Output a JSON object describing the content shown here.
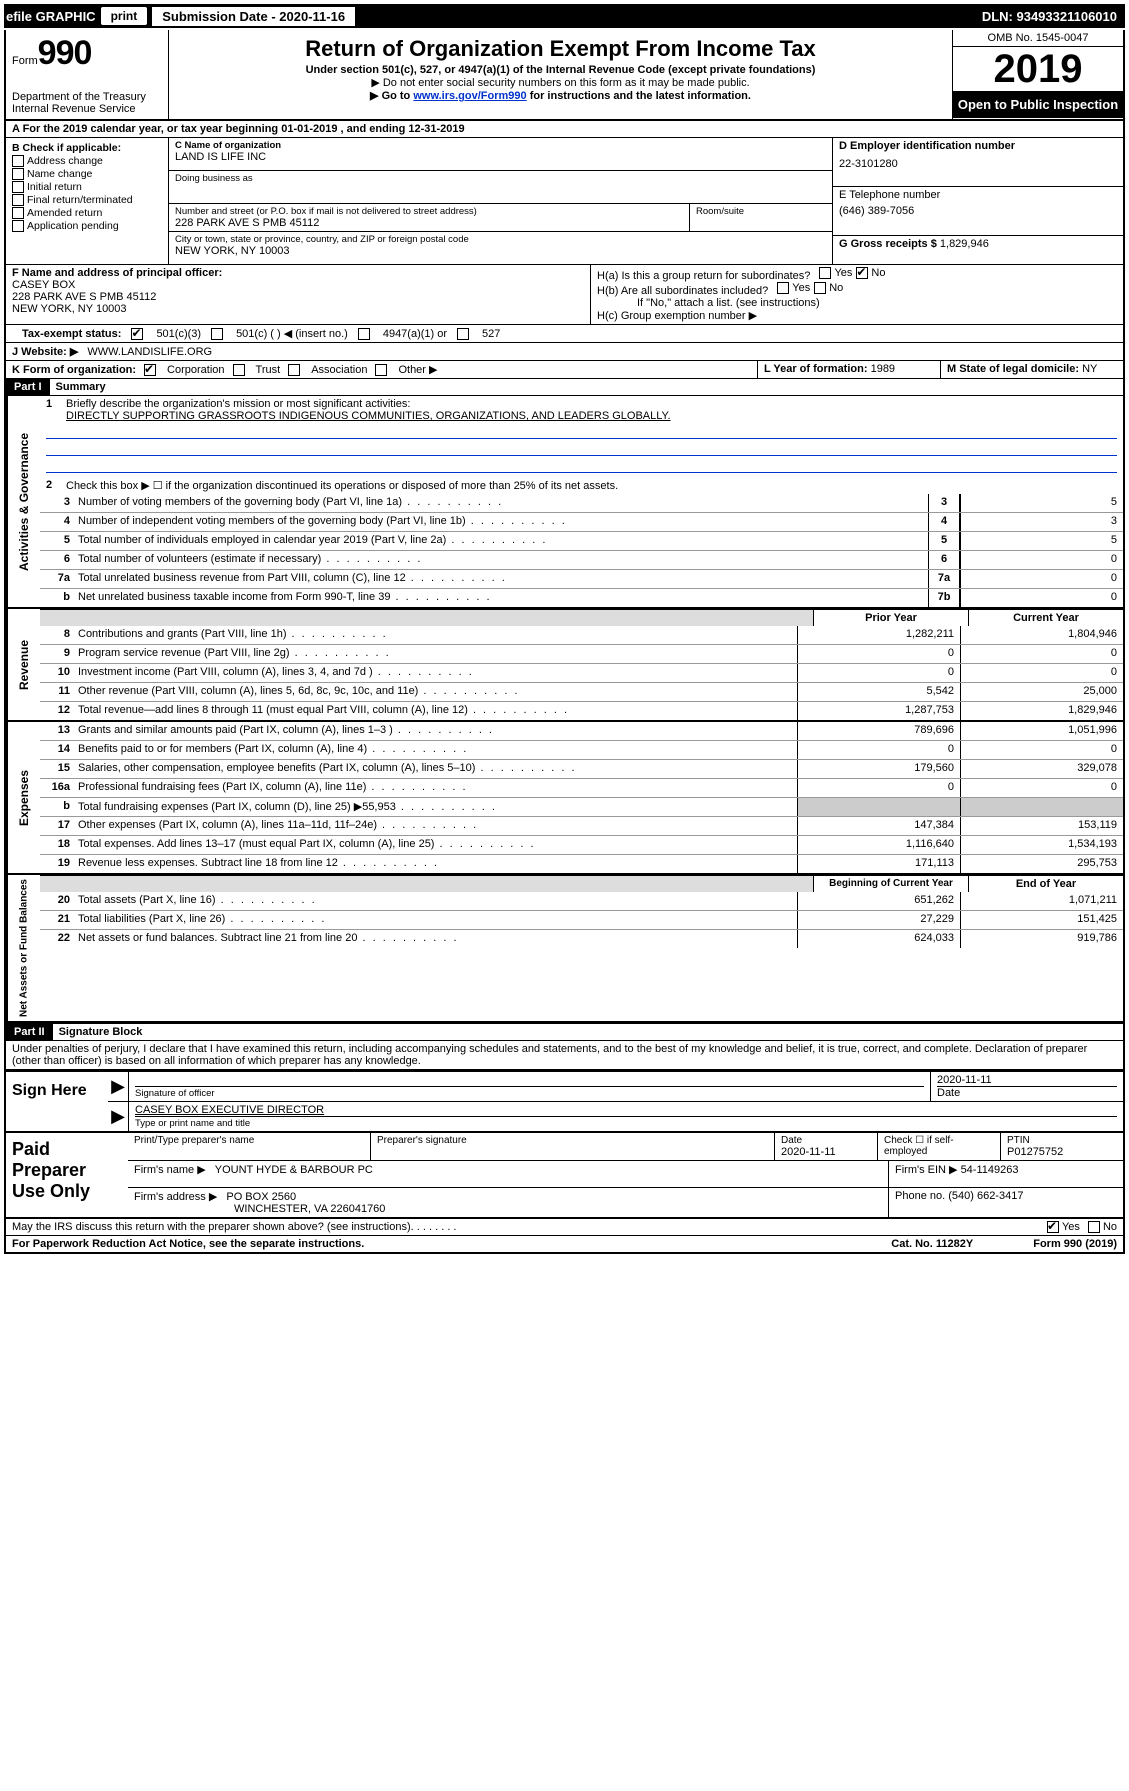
{
  "topbar": {
    "efile": "efile GRAPHIC",
    "print": "print",
    "submission": "Submission Date - 2020-11-16",
    "dln": "DLN: 93493321106010"
  },
  "header": {
    "form_prefix": "Form",
    "form_number": "990",
    "dept": "Department of the Treasury\nInternal Revenue Service",
    "title": "Return of Organization Exempt From Income Tax",
    "subtitle": "Under section 501(c), 527, or 4947(a)(1) of the Internal Revenue Code (except private foundations)",
    "note1": "▶ Do not enter social security numbers on this form as it may be made public.",
    "note2_pre": "▶ Go to ",
    "note2_link": "www.irs.gov/Form990",
    "note2_post": " for instructions and the latest information.",
    "omb": "OMB No. 1545-0047",
    "year": "2019",
    "open": "Open to Public Inspection"
  },
  "rowA": {
    "pre": "A For the 2019 calendar year, or tax year beginning ",
    "begin": "01-01-2019",
    "mid": " , and ending ",
    "end": "12-31-2019"
  },
  "B": {
    "label": "B Check if applicable:",
    "items": [
      "Address change",
      "Name change",
      "Initial return",
      "Final return/terminated",
      "Amended return",
      "Application pending"
    ]
  },
  "C": {
    "name_lbl": "C Name of organization",
    "name": "LAND IS LIFE INC",
    "dba_lbl": "Doing business as",
    "dba": "",
    "addr_lbl": "Number and street (or P.O. box if mail is not delivered to street address)",
    "addr": "228 PARK AVE S PMB 45112",
    "room_lbl": "Room/suite",
    "city_lbl": "City or town, state or province, country, and ZIP or foreign postal code",
    "city": "NEW YORK, NY  10003"
  },
  "D": {
    "lbl": "D Employer identification number",
    "val": "22-3101280"
  },
  "E": {
    "lbl": "E Telephone number",
    "val": "(646) 389-7056"
  },
  "G": {
    "lbl": "G Gross receipts $",
    "val": "1,829,946"
  },
  "F": {
    "lbl": "F  Name and address of principal officer:",
    "name": "CASEY BOX",
    "addr1": "228 PARK AVE S PMB 45112",
    "addr2": "NEW YORK, NY  10003"
  },
  "H": {
    "a": "H(a)  Is this a group return for subordinates?",
    "b": "H(b)  Are all subordinates included?",
    "b_note": "If \"No,\" attach a list. (see instructions)",
    "c": "H(c)  Group exemption number ▶"
  },
  "I": {
    "lbl": "Tax-exempt status:",
    "opts": [
      "501(c)(3)",
      "501(c) (   ) ◀ (insert no.)",
      "4947(a)(1) or",
      "527"
    ]
  },
  "J": {
    "lbl": "J Website: ▶",
    "val": "WWW.LANDISLIFE.ORG"
  },
  "K": {
    "lbl": "K Form of organization:",
    "opts": [
      "Corporation",
      "Trust",
      "Association",
      "Other ▶"
    ]
  },
  "L": {
    "lbl": "L Year of formation:",
    "val": "1989"
  },
  "M": {
    "lbl": "M State of legal domicile:",
    "val": "NY"
  },
  "part1": {
    "hdr": "Part I",
    "title": "Summary"
  },
  "summary": {
    "q1": "Briefly describe the organization's mission or most significant activities:",
    "q1_ans": "DIRECTLY SUPPORTING GRASSROOTS INDIGENOUS COMMUNITIES, ORGANIZATIONS, AND LEADERS GLOBALLY.",
    "q2": "Check this box ▶ ☐  if the organization discontinued its operations or disposed of more than 25% of its net assets."
  },
  "gov_lines": [
    {
      "n": "3",
      "d": "Number of voting members of the governing body (Part VI, line 1a)",
      "box": "3",
      "v": "5"
    },
    {
      "n": "4",
      "d": "Number of independent voting members of the governing body (Part VI, line 1b)",
      "box": "4",
      "v": "3"
    },
    {
      "n": "5",
      "d": "Total number of individuals employed in calendar year 2019 (Part V, line 2a)",
      "box": "5",
      "v": "5"
    },
    {
      "n": "6",
      "d": "Total number of volunteers (estimate if necessary)",
      "box": "6",
      "v": "0"
    },
    {
      "n": "7a",
      "d": "Total unrelated business revenue from Part VIII, column (C), line 12",
      "box": "7a",
      "v": "0"
    },
    {
      "n": "b",
      "d": "Net unrelated business taxable income from Form 990-T, line 39",
      "box": "7b",
      "v": "0"
    }
  ],
  "col_hdr": {
    "prior": "Prior Year",
    "current": "Current Year",
    "begin": "Beginning of Current Year",
    "end": "End of Year"
  },
  "rev_lines": [
    {
      "n": "8",
      "d": "Contributions and grants (Part VIII, line 1h)",
      "p": "1,282,211",
      "c": "1,804,946"
    },
    {
      "n": "9",
      "d": "Program service revenue (Part VIII, line 2g)",
      "p": "0",
      "c": "0"
    },
    {
      "n": "10",
      "d": "Investment income (Part VIII, column (A), lines 3, 4, and 7d )",
      "p": "0",
      "c": "0"
    },
    {
      "n": "11",
      "d": "Other revenue (Part VIII, column (A), lines 5, 6d, 8c, 9c, 10c, and 11e)",
      "p": "5,542",
      "c": "25,000"
    },
    {
      "n": "12",
      "d": "Total revenue—add lines 8 through 11 (must equal Part VIII, column (A), line 12)",
      "p": "1,287,753",
      "c": "1,829,946"
    }
  ],
  "exp_lines": [
    {
      "n": "13",
      "d": "Grants and similar amounts paid (Part IX, column (A), lines 1–3 )",
      "p": "789,696",
      "c": "1,051,996"
    },
    {
      "n": "14",
      "d": "Benefits paid to or for members (Part IX, column (A), line 4)",
      "p": "0",
      "c": "0"
    },
    {
      "n": "15",
      "d": "Salaries, other compensation, employee benefits (Part IX, column (A), lines 5–10)",
      "p": "179,560",
      "c": "329,078"
    },
    {
      "n": "16a",
      "d": "Professional fundraising fees (Part IX, column (A), line 11e)",
      "p": "0",
      "c": "0"
    },
    {
      "n": "b",
      "d": "Total fundraising expenses (Part IX, column (D), line 25) ▶55,953",
      "p": "",
      "c": "",
      "grey": true
    },
    {
      "n": "17",
      "d": "Other expenses (Part IX, column (A), lines 11a–11d, 11f–24e)",
      "p": "147,384",
      "c": "153,119"
    },
    {
      "n": "18",
      "d": "Total expenses. Add lines 13–17 (must equal Part IX, column (A), line 25)",
      "p": "1,116,640",
      "c": "1,534,193"
    },
    {
      "n": "19",
      "d": "Revenue less expenses. Subtract line 18 from line 12",
      "p": "171,113",
      "c": "295,753"
    }
  ],
  "net_lines": [
    {
      "n": "20",
      "d": "Total assets (Part X, line 16)",
      "p": "651,262",
      "c": "1,071,211"
    },
    {
      "n": "21",
      "d": "Total liabilities (Part X, line 26)",
      "p": "27,229",
      "c": "151,425"
    },
    {
      "n": "22",
      "d": "Net assets or fund balances. Subtract line 21 from line 20",
      "p": "624,033",
      "c": "919,786"
    }
  ],
  "part2": {
    "hdr": "Part II",
    "title": "Signature Block"
  },
  "sig": {
    "decl": "Under penalties of perjury, I declare that I have examined this return, including accompanying schedules and statements, and to the best of my knowledge and belief, it is true, correct, and complete. Declaration of preparer (other than officer) is based on all information of which preparer has any knowledge.",
    "sign_here": "Sign Here",
    "sig_officer": "Signature of officer",
    "date": "Date",
    "date_val": "2020-11-11",
    "name_title": "CASEY BOX  EXECUTIVE DIRECTOR",
    "name_lbl": "Type or print name and title"
  },
  "paid": {
    "title": "Paid Preparer Use Only",
    "h1": "Print/Type preparer's name",
    "h2": "Preparer's signature",
    "h3": "Date",
    "h3v": "2020-11-11",
    "h4": "Check ☐ if self-employed",
    "h5": "PTIN",
    "h5v": "P01275752",
    "firm_name_lbl": "Firm's name     ▶",
    "firm_name": "YOUNT HYDE & BARBOUR PC",
    "firm_ein_lbl": "Firm's EIN ▶",
    "firm_ein": "54-1149263",
    "firm_addr_lbl": "Firm's address ▶",
    "firm_addr": "PO BOX 2560",
    "firm_addr2": "WINCHESTER, VA  226041760",
    "phone_lbl": "Phone no.",
    "phone": "(540) 662-3417"
  },
  "footer": {
    "discuss": "May the IRS discuss this return with the preparer shown above? (see instructions)",
    "pra": "For Paperwork Reduction Act Notice, see the separate instructions.",
    "cat": "Cat. No. 11282Y",
    "form": "Form 990 (2019)"
  }
}
